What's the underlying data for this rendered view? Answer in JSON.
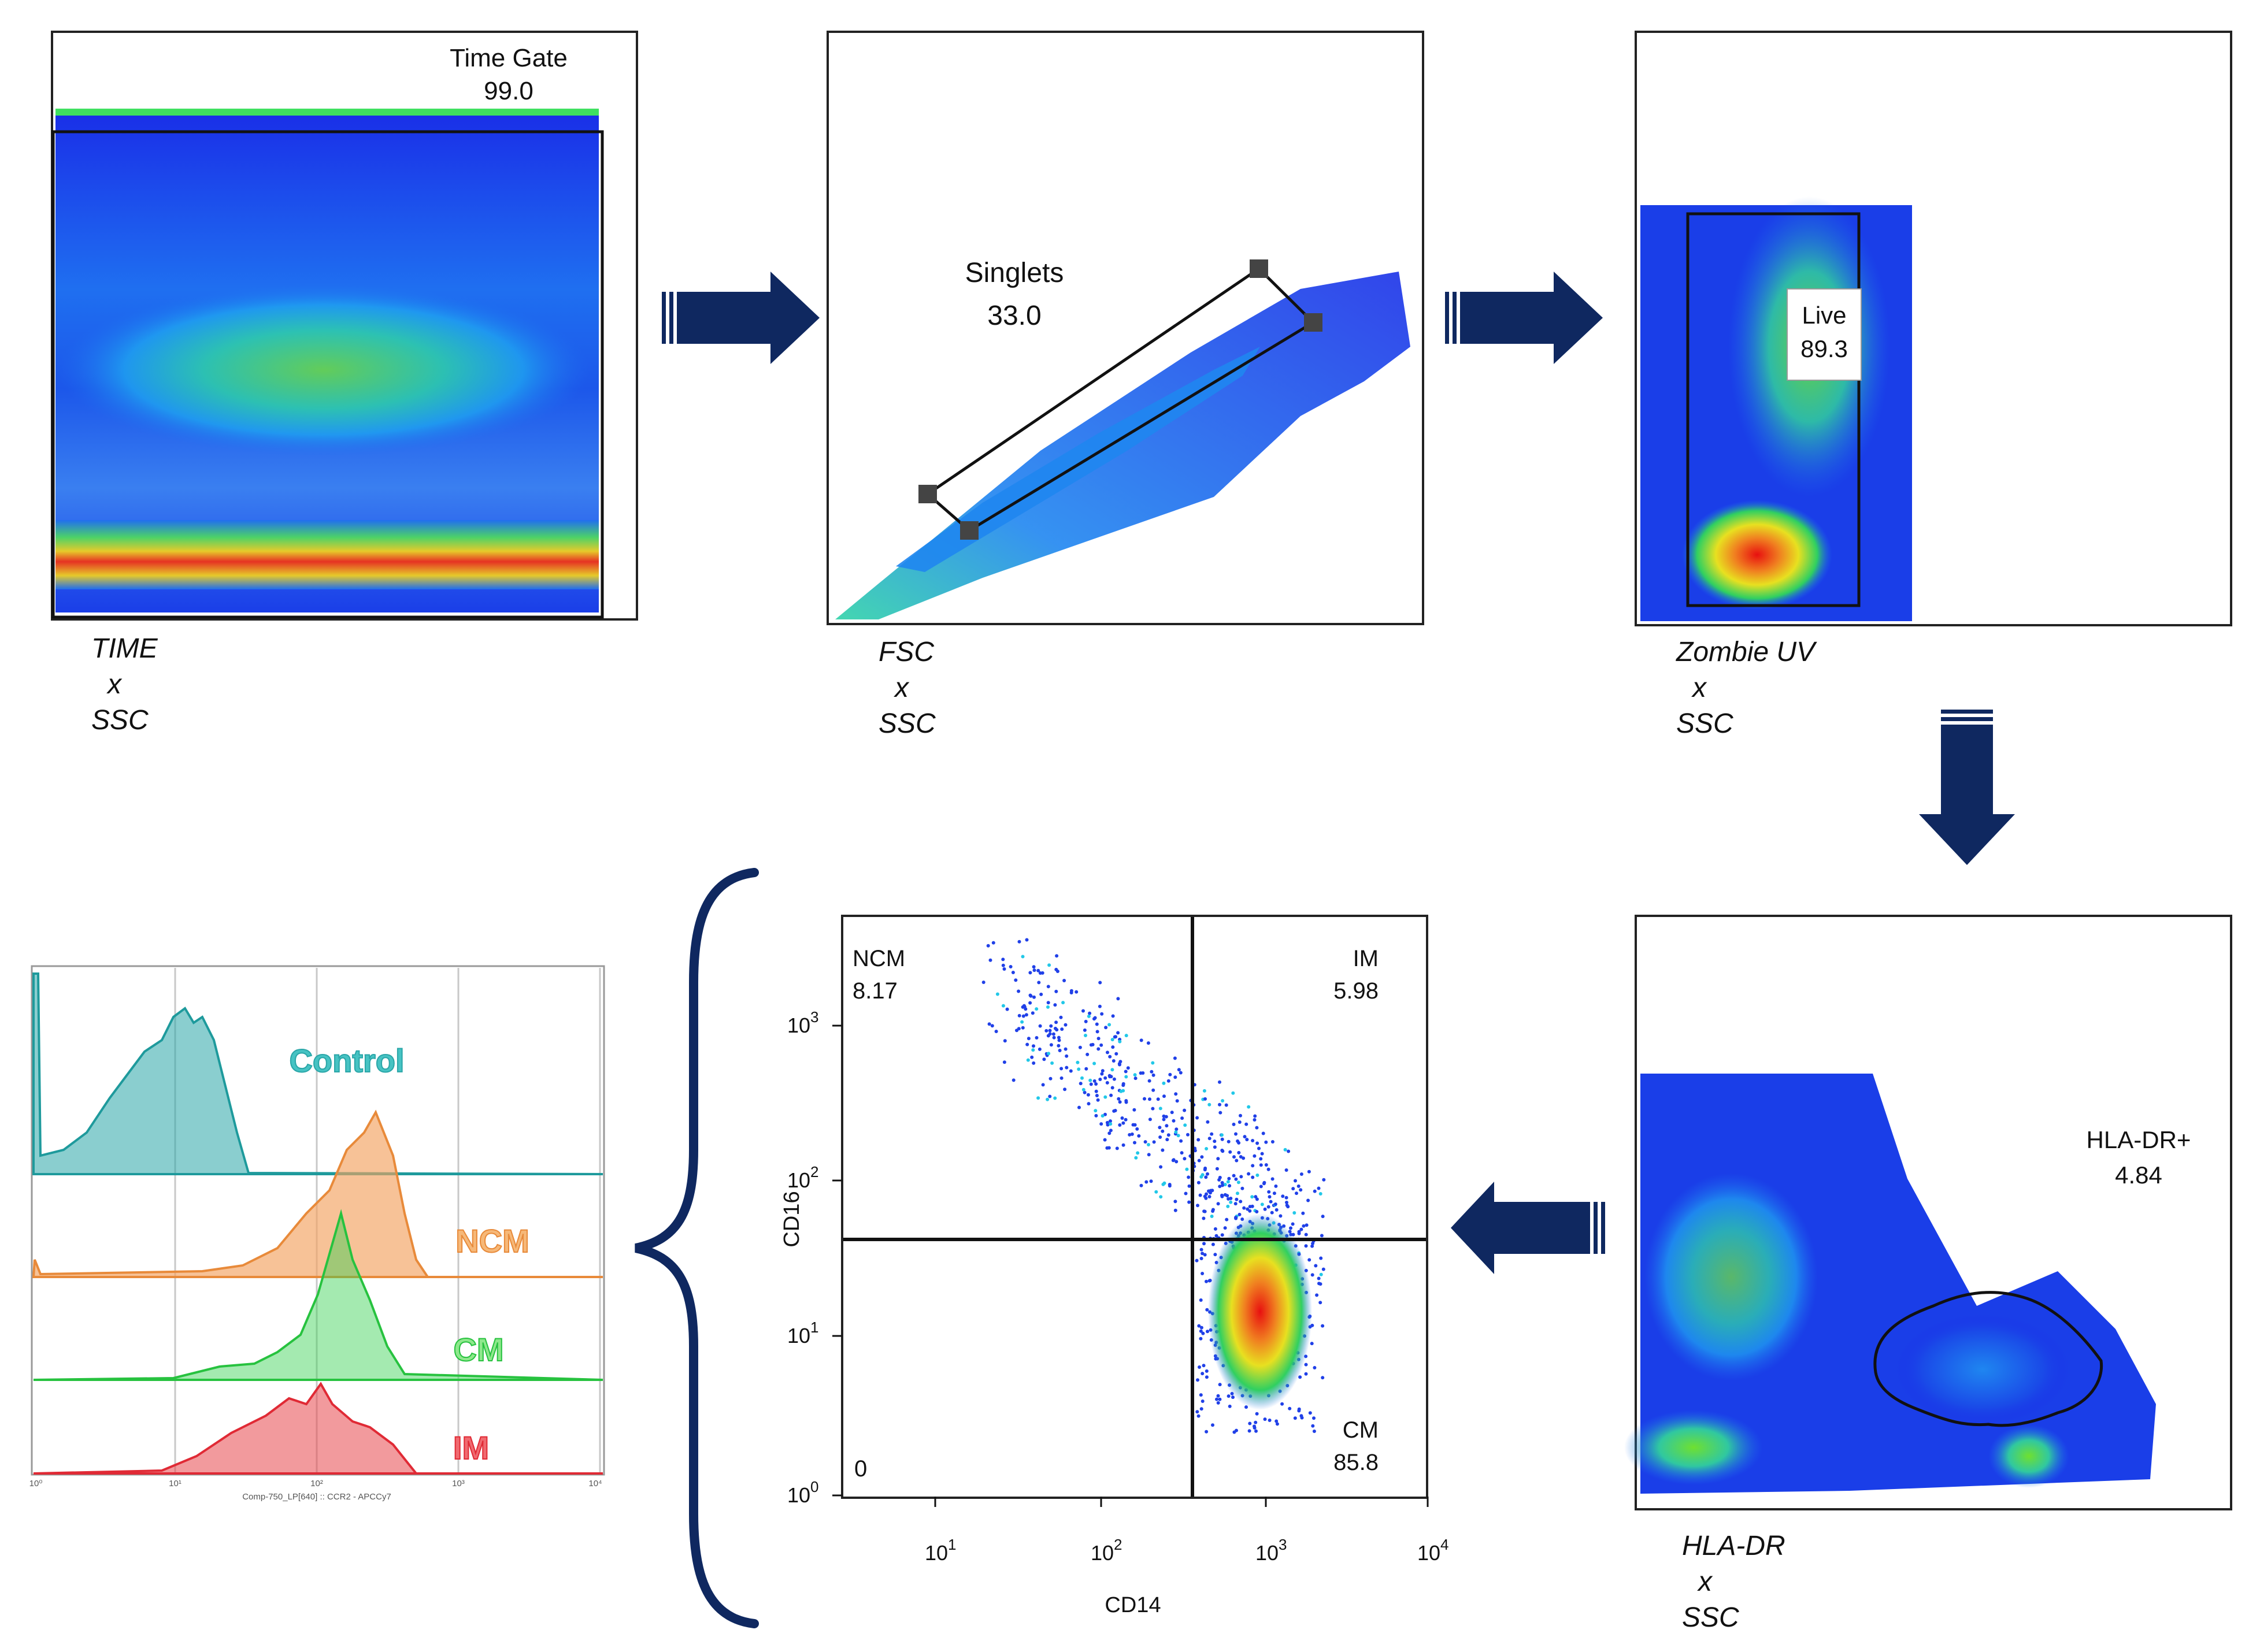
{
  "panels": {
    "time": {
      "gate_name": "Time Gate",
      "gate_value": "99.0",
      "x_param": "TIME",
      "cross": "x",
      "y_param": "SSC"
    },
    "fsc": {
      "gate_name": "Singlets",
      "gate_value": "33.0",
      "x_param": "FSC",
      "cross": "x",
      "y_param": "SSC"
    },
    "zombie": {
      "gate_name": "Live",
      "gate_value": "89.3",
      "x_param": "Zombie UV",
      "cross": "x",
      "y_param": "SSC"
    },
    "hladr": {
      "gate_name": "HLA-DR+",
      "gate_value": "4.84",
      "x_param": "HLA-DR",
      "cross": "x",
      "y_param": "SSC"
    },
    "quadrant": {
      "q_tl_name": "NCM",
      "q_tl_value": "8.17",
      "q_tr_name": "IM",
      "q_tr_value": "5.98",
      "q_bl_value": "0",
      "q_br_name": "CM",
      "q_br_value": "85.8",
      "xlabel": "CD14",
      "ylabel": "CD16",
      "x_ticks": [
        {
          "base": "10",
          "exp": "1"
        },
        {
          "base": "10",
          "exp": "2"
        },
        {
          "base": "10",
          "exp": "3"
        },
        {
          "base": "10",
          "exp": "4"
        }
      ],
      "y_ticks": [
        {
          "base": "10",
          "exp": "0"
        },
        {
          "base": "10",
          "exp": "1"
        },
        {
          "base": "10",
          "exp": "2"
        },
        {
          "base": "10",
          "exp": "3"
        }
      ]
    },
    "histogram": {
      "xlabel": "Comp-750_LP[640] :: CCR2 - APCCy7",
      "tick_labels": [
        "10⁰",
        "10¹",
        "10²",
        "10³",
        "10⁴"
      ],
      "series": [
        {
          "name": "Control",
          "color": "#2aa6a8"
        },
        {
          "name": "NCM",
          "color": "#f2a25f"
        },
        {
          "name": "CM",
          "color": "#35d14f"
        },
        {
          "name": "IM",
          "color": "#e8474d"
        }
      ]
    }
  },
  "colors": {
    "arrow": "#0f2860",
    "brace": "#0f2860"
  }
}
